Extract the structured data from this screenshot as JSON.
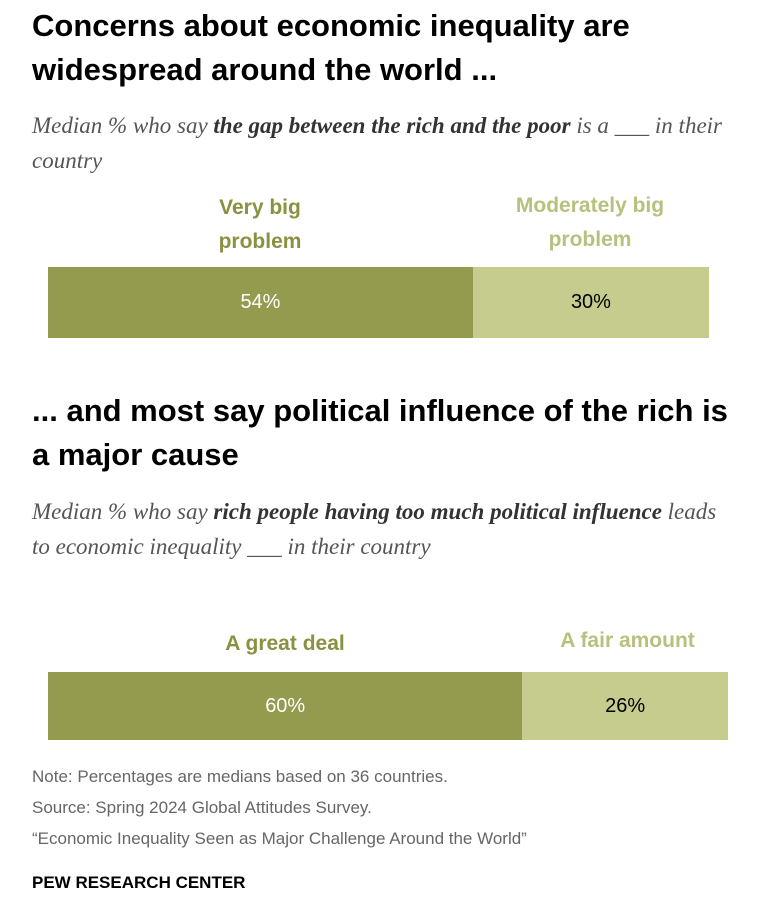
{
  "colors": {
    "dark_segment": "#949b4e",
    "light_segment": "#c6cb8e",
    "dark_label": "#8a9140",
    "light_label": "#b9c07e"
  },
  "chart_data": [
    {
      "type": "bar",
      "stacked": true,
      "orientation": "horizontal",
      "title": "Concerns about economic inequality are widespread around the world ...",
      "subtitle": {
        "pre": "Median % who say ",
        "bold": "the gap between the rich and the poor",
        "post": " is a ___ in their country"
      },
      "series": [
        {
          "name": "Very big problem",
          "value": 54,
          "label": "54%",
          "color": "#949b4e"
        },
        {
          "name": "Moderately big problem",
          "value": 30,
          "label": "30%",
          "color": "#c6cb8e"
        }
      ],
      "xlim": [
        0,
        100
      ]
    },
    {
      "type": "bar",
      "stacked": true,
      "orientation": "horizontal",
      "title": "... and most say political influence of the rich is a major cause",
      "subtitle": {
        "pre": "Median % who say ",
        "bold": "rich people having too much political influence",
        "post": " leads to economic inequality ___ in their country"
      },
      "series": [
        {
          "name": "A great deal",
          "value": 60,
          "label": "60%",
          "color": "#949b4e"
        },
        {
          "name": "A fair amount",
          "value": 26,
          "label": "26%",
          "color": "#c6cb8e"
        }
      ],
      "xlim": [
        0,
        100
      ]
    }
  ],
  "footer": {
    "note": "Note: Percentages are medians based on 36 countries.",
    "source": "Source: Spring 2024 Global Attitudes Survey.",
    "report": "“Economic Inequality Seen as Major Challenge Around the World”",
    "brand": "PEW RESEARCH CENTER"
  }
}
